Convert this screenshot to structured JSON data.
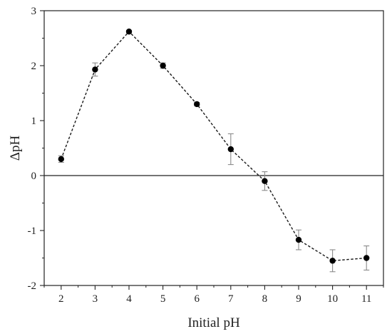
{
  "chart_data": {
    "type": "scatter",
    "title": "",
    "xlabel": "Initial pH",
    "ylabel": "ΔpH",
    "xlim": [
      1.5,
      11.5
    ],
    "ylim": [
      -2,
      3
    ],
    "xticks": [
      2,
      3,
      4,
      5,
      6,
      7,
      8,
      9,
      10,
      11
    ],
    "yticks": [
      -2,
      -1,
      0,
      1,
      2,
      3
    ],
    "x_tick_labels": [
      "2",
      "3",
      "4",
      "5",
      "6",
      "7",
      "8",
      "9",
      "10",
      "11"
    ],
    "y_tick_labels": [
      "-2",
      "-1",
      "0",
      "1",
      "2",
      "3"
    ],
    "reference_line_y": 0,
    "grid": false,
    "line_style": "dashed",
    "marker": "filled-circle",
    "series": [
      {
        "x": [
          2,
          3,
          4,
          5,
          6,
          7,
          8,
          9,
          10,
          11
        ],
        "y": [
          0.3,
          1.93,
          2.62,
          2.0,
          1.3,
          0.48,
          -0.1,
          -1.17,
          -1.55,
          -1.5
        ],
        "error": [
          0.06,
          0.12,
          0.02,
          0.05,
          0.03,
          0.28,
          0.17,
          0.18,
          0.2,
          0.22
        ]
      }
    ],
    "colors": {
      "line": "#1a1a1a",
      "marker": "#000000",
      "error_bar": "#8a8a8a",
      "axis": "#222222"
    }
  }
}
